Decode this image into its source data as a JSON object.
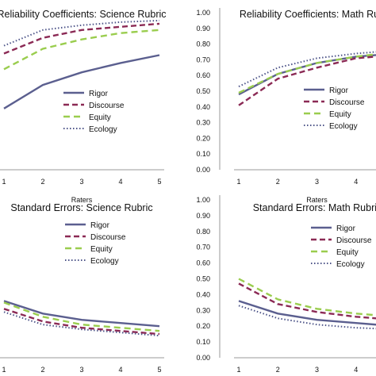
{
  "chart_data": [
    {
      "type": "line",
      "title": "Reliability Coefficients: Science Rubric",
      "xlabel": "Raters",
      "ylabel": "",
      "x": [
        1,
        2,
        3,
        4,
        5
      ],
      "ylim": [
        0,
        1
      ],
      "y_ticks": [],
      "legend_position": "right",
      "series": [
        {
          "name": "Rigor",
          "values": [
            0.39,
            0.54,
            0.62,
            0.68,
            0.73
          ]
        },
        {
          "name": "Discourse",
          "values": [
            0.74,
            0.84,
            0.89,
            0.91,
            0.93
          ]
        },
        {
          "name": "Equity",
          "values": [
            0.64,
            0.77,
            0.83,
            0.87,
            0.89
          ]
        },
        {
          "name": "Ecology",
          "values": [
            0.79,
            0.89,
            0.92,
            0.94,
            0.95
          ]
        }
      ]
    },
    {
      "type": "line",
      "title": "Reliability Coefficients: Math Rubric",
      "xlabel": "Raters",
      "ylabel": "",
      "x": [
        1,
        2,
        3,
        4,
        5
      ],
      "ylim": [
        0,
        1
      ],
      "y_ticks": [
        "0.00",
        "0.10",
        "0.20",
        "0.30",
        "0.40",
        "0.50",
        "0.60",
        "0.70",
        "0.80",
        "0.90",
        "1.00"
      ],
      "legend_position": "right",
      "series": [
        {
          "name": "Rigor",
          "values": [
            0.48,
            0.61,
            0.68,
            0.72,
            0.74
          ]
        },
        {
          "name": "Discourse",
          "values": [
            0.41,
            0.58,
            0.65,
            0.71,
            0.73
          ]
        },
        {
          "name": "Equity",
          "values": [
            0.49,
            0.61,
            0.68,
            0.72,
            0.75
          ]
        },
        {
          "name": "Ecology",
          "values": [
            0.53,
            0.65,
            0.71,
            0.74,
            0.76
          ]
        }
      ]
    },
    {
      "type": "line",
      "title": "Standard Errors: Science Rubric",
      "xlabel": "Raters",
      "ylabel": "",
      "x": [
        1,
        2,
        3,
        4,
        5
      ],
      "ylim": [
        0,
        1
      ],
      "y_ticks": [],
      "legend_position": "top-right",
      "series": [
        {
          "name": "Rigor",
          "values": [
            0.36,
            0.28,
            0.24,
            0.22,
            0.2
          ]
        },
        {
          "name": "Discourse",
          "values": [
            0.31,
            0.23,
            0.19,
            0.17,
            0.15
          ]
        },
        {
          "name": "Equity",
          "values": [
            0.35,
            0.26,
            0.21,
            0.19,
            0.17
          ]
        },
        {
          "name": "Ecology",
          "values": [
            0.29,
            0.21,
            0.18,
            0.16,
            0.14
          ]
        }
      ]
    },
    {
      "type": "line",
      "title": "Standard Errors: Math Rubric",
      "xlabel": "Raters",
      "ylabel": "",
      "x": [
        1,
        2,
        3,
        4,
        5
      ],
      "ylim": [
        0,
        1
      ],
      "y_ticks": [
        "0.00",
        "0.10",
        "0.20",
        "0.30",
        "0.40",
        "0.50",
        "0.60",
        "0.70",
        "0.80",
        "0.90",
        "1.00"
      ],
      "legend_position": "top-right",
      "series": [
        {
          "name": "Rigor",
          "values": [
            0.36,
            0.28,
            0.24,
            0.22,
            0.2
          ]
        },
        {
          "name": "Discourse",
          "values": [
            0.47,
            0.34,
            0.29,
            0.26,
            0.24
          ]
        },
        {
          "name": "Equity",
          "values": [
            0.5,
            0.37,
            0.31,
            0.28,
            0.26
          ]
        },
        {
          "name": "Ecology",
          "values": [
            0.33,
            0.25,
            0.21,
            0.19,
            0.18
          ]
        }
      ]
    }
  ],
  "series_styles": [
    {
      "color": "#5b5f8f",
      "dash": "",
      "width": 2.4
    },
    {
      "color": "#8b2a55",
      "dash": "7 4",
      "width": 2.4
    },
    {
      "color": "#9acd4e",
      "dash": "8 5",
      "width": 2.4
    },
    {
      "color": "#4e5589",
      "dash": "1.5 2.5",
      "width": 2.0
    }
  ]
}
